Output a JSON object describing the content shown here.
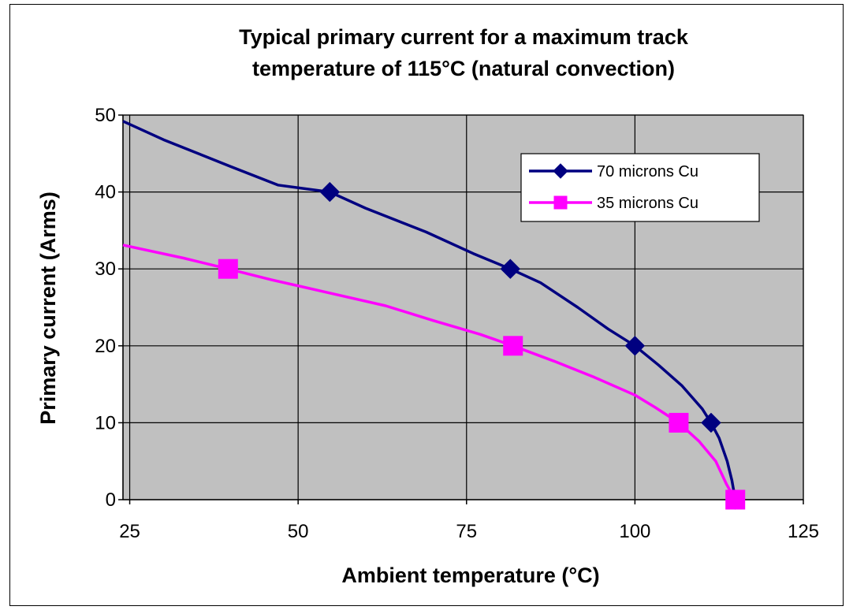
{
  "chart_data": {
    "type": "line",
    "title": [
      "Typical primary current for a maximum track",
      "temperature of 115°C (natural convection)"
    ],
    "xlabel": "Ambient temperature (°C)",
    "ylabel": "Primary current (Arms)",
    "xlim": [
      24,
      125
    ],
    "ylim": [
      0,
      50
    ],
    "x_ticks": [
      25,
      50,
      75,
      100,
      125
    ],
    "y_ticks": [
      0,
      10,
      20,
      30,
      40,
      50
    ],
    "x_tick_labels": [
      "25",
      "50",
      "75",
      "100",
      "125"
    ],
    "y_tick_labels": [
      "0",
      "10",
      "20",
      "30",
      "40",
      "50"
    ],
    "grid": true,
    "plot_background": "#c0c0c0",
    "legend_position": "top-right",
    "series": [
      {
        "name": "70 microns Cu",
        "color": "#000080",
        "marker": "diamond",
        "line": [
          [
            24,
            49.2
          ],
          [
            30,
            46.8
          ],
          [
            40,
            43.3
          ],
          [
            47,
            40.9
          ],
          [
            54.7,
            40
          ],
          [
            60,
            37.9
          ],
          [
            69,
            34.8
          ],
          [
            76,
            32.0
          ],
          [
            81.5,
            30
          ],
          [
            86,
            28.2
          ],
          [
            91.5,
            25
          ],
          [
            96,
            22.2
          ],
          [
            100,
            20
          ],
          [
            103.5,
            17.5
          ],
          [
            107,
            14.8
          ],
          [
            110,
            11.8
          ],
          [
            111.3,
            10
          ],
          [
            112.5,
            8.0
          ],
          [
            113.7,
            5.0
          ],
          [
            114.4,
            2.5
          ],
          [
            114.9,
            0
          ]
        ],
        "markers": [
          [
            54.7,
            40
          ],
          [
            81.5,
            30
          ],
          [
            100,
            20
          ],
          [
            111.3,
            10
          ],
          [
            114.9,
            0
          ]
        ]
      },
      {
        "name": "35 microns Cu",
        "color": "#ff00ff",
        "marker": "square",
        "line": [
          [
            24,
            33.1
          ],
          [
            33,
            31.4
          ],
          [
            39.6,
            30
          ],
          [
            46,
            28.6
          ],
          [
            55,
            26.8
          ],
          [
            63,
            25.2
          ],
          [
            70,
            23.3
          ],
          [
            77,
            21.5
          ],
          [
            81.9,
            20
          ],
          [
            88,
            18.0
          ],
          [
            94,
            15.9
          ],
          [
            100,
            13.6
          ],
          [
            103,
            12.0
          ],
          [
            106.5,
            10
          ],
          [
            109.5,
            7.6
          ],
          [
            112,
            5.0
          ],
          [
            113.6,
            2.0
          ],
          [
            114.9,
            0
          ]
        ],
        "markers": [
          [
            39.6,
            30
          ],
          [
            81.9,
            20
          ],
          [
            106.5,
            10
          ],
          [
            114.9,
            0
          ]
        ]
      }
    ]
  }
}
